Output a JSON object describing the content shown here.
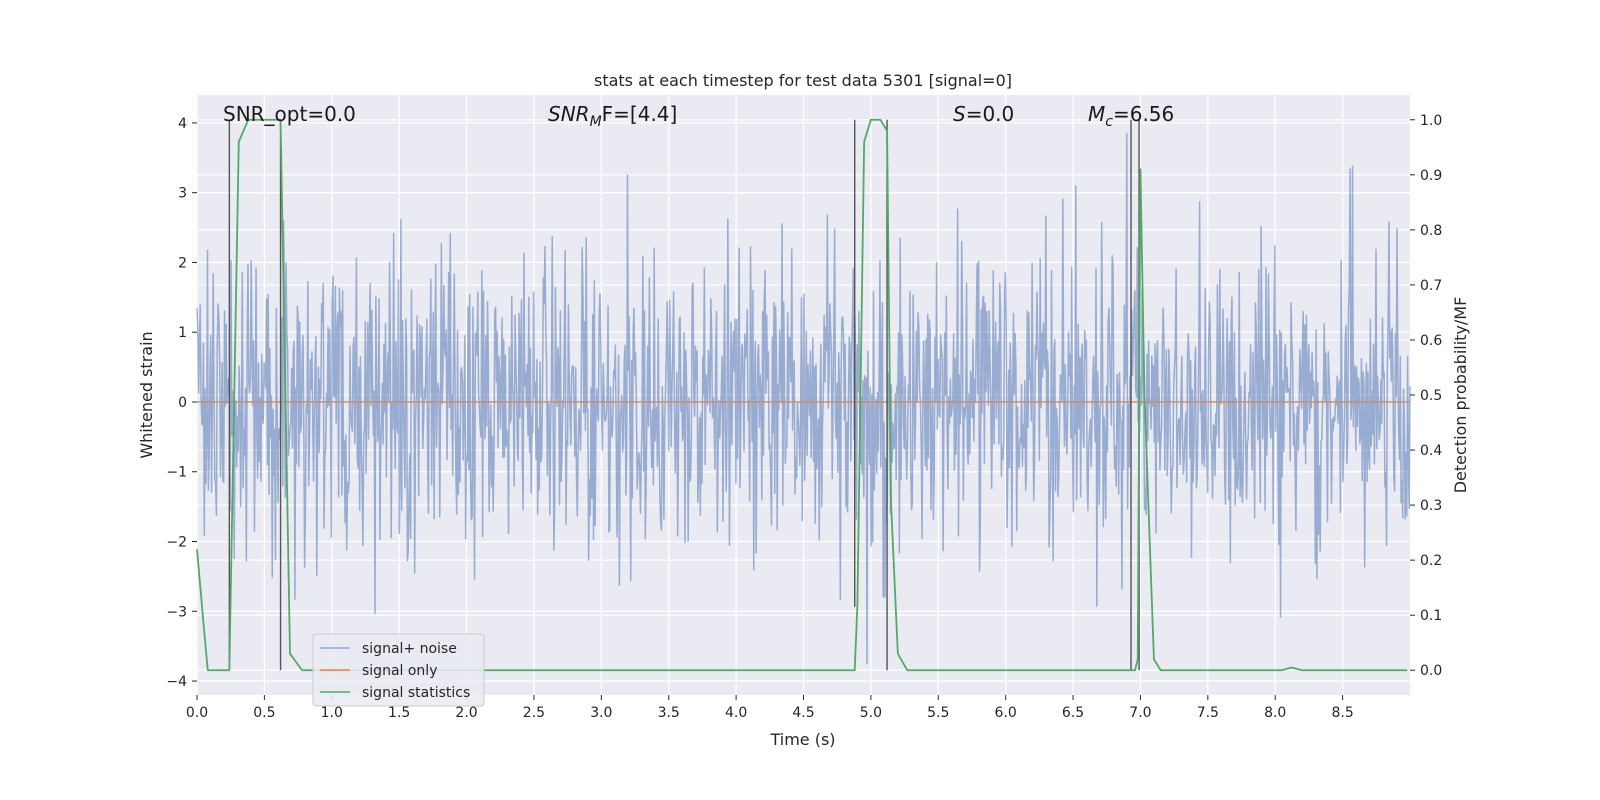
{
  "chart_data": {
    "type": "line",
    "title": "stats at each timestep for test data 5301 [signal=0]",
    "xlabel": "Time (s)",
    "ylabel": "Whitened strain",
    "y2label": "Detection probability/MF",
    "xlim": [
      0,
      9.0
    ],
    "ylim": [
      -4.2,
      4.4
    ],
    "y2lim": [
      -0.045,
      1.045
    ],
    "xticks": [
      0.0,
      0.5,
      1.0,
      1.5,
      2.0,
      2.5,
      3.0,
      3.5,
      4.0,
      4.5,
      5.0,
      5.5,
      6.0,
      6.5,
      7.0,
      7.5,
      8.0,
      8.5
    ],
    "xtick_labels": [
      "0.0",
      "0.5",
      "1.0",
      "1.5",
      "2.0",
      "2.5",
      "3.0",
      "3.5",
      "4.0",
      "4.5",
      "5.0",
      "5.5",
      "6.0",
      "6.5",
      "7.0",
      "7.5",
      "8.0",
      "8.5"
    ],
    "yticks": [
      4,
      3,
      2,
      1,
      0,
      -1,
      -2,
      -3,
      -4
    ],
    "ytick_labels": [
      "4",
      "3",
      "2",
      "1",
      "0",
      "−1",
      "−2",
      "−3",
      "−4"
    ],
    "y2ticks": [
      1.0,
      0.9,
      0.8,
      0.7,
      0.6,
      0.5,
      0.4,
      0.3,
      0.2,
      0.1,
      0.0
    ],
    "y2tick_labels": [
      "1.0",
      "0.9",
      "0.8",
      "0.7",
      "0.6",
      "0.5",
      "0.4",
      "0.3",
      "0.2",
      "0.1",
      "0.0"
    ],
    "grid": true,
    "legend_position": "lower-left",
    "series": [
      {
        "name": "signal+ noise",
        "color": "#4c72b0",
        "description": "whitened noise, approx unit variance over 0-9 s",
        "sample_count": 1500,
        "seed": 5301
      },
      {
        "name": "signal only",
        "color": "#dd8452",
        "x": [
          0,
          9.0
        ],
        "y": [
          0,
          0
        ]
      },
      {
        "name": "signal statistics",
        "color": "#55a868",
        "axis": "right",
        "x": [
          0.0,
          0.05,
          0.08,
          0.24,
          0.31,
          0.38,
          0.56,
          0.62,
          0.69,
          0.78,
          4.88,
          4.9,
          4.95,
          5.0,
          5.07,
          5.12,
          5.15,
          5.2,
          5.27,
          6.96,
          6.98,
          7.0,
          7.03,
          7.1,
          7.15,
          8.05,
          8.12,
          8.2,
          8.98
        ],
        "y": [
          0.22,
          0.08,
          0.0,
          0.0,
          0.96,
          1.0,
          1.0,
          1.0,
          0.03,
          0.0,
          0.0,
          0.12,
          0.96,
          1.0,
          1.0,
          0.98,
          0.3,
          0.03,
          0.0,
          0.0,
          0.02,
          0.91,
          0.5,
          0.02,
          0.0,
          0.0,
          0.005,
          0.0,
          0.0
        ]
      }
    ],
    "vlines": [
      {
        "x": 0.24,
        "y_top": 1.0,
        "y_bottom": 0.0
      },
      {
        "x": 0.62,
        "y_top": 1.0,
        "y_bottom": 0.0
      },
      {
        "x": 4.88,
        "y_top": 1.0,
        "y_bottom": 0.115
      },
      {
        "x": 5.12,
        "y_top": 1.0,
        "y_bottom": 0.0
      },
      {
        "x": 6.93,
        "y_top": 1.0,
        "y_bottom": 0.0
      },
      {
        "x": 6.99,
        "y_top": 1.0,
        "y_bottom": 0.0
      }
    ],
    "annotations": [
      {
        "text": "SNR_opt=0.0",
        "x": 0.2,
        "y": 4.0
      },
      {
        "text": "SNR_MF=[4.4]",
        "x": 2.6,
        "y": 4.0
      },
      {
        "text": "S=0.0",
        "x": 5.6,
        "y": 4.0
      },
      {
        "text": "M_c=6.56",
        "x": 6.6,
        "y": 4.0
      }
    ]
  },
  "annotations_rich": {
    "snr_opt": {
      "main": "SNR_opt=0.0"
    },
    "snr_mf": {
      "base": "SNR",
      "sub": "M",
      "rest": "F=[4.4]"
    },
    "s": {
      "base": "S",
      "rest": "=0.0"
    },
    "mc": {
      "base": "M",
      "sub": "c",
      "rest": "=6.56"
    }
  },
  "legend": [
    {
      "label": "signal+ noise",
      "color": "#4c72b0"
    },
    {
      "label": "signal only",
      "color": "#dd8452"
    },
    {
      "label": "signal statistics",
      "color": "#55a868"
    }
  ],
  "colors": {
    "axes_bg": "#eaeaf2",
    "grid": "#ffffff",
    "vline": "#555555"
  }
}
